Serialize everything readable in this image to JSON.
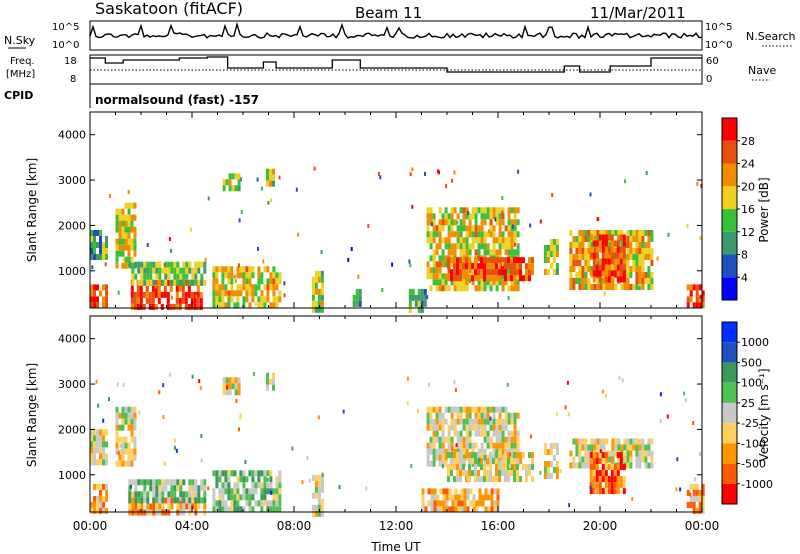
{
  "header": {
    "station": "Saskatoon (fitACF)",
    "beam": "Beam 11",
    "date": "11/Mar/2011"
  },
  "top_panels": {
    "nsky_label": "N.Sky",
    "nsky_ticks": [
      "10^5",
      "10^0"
    ],
    "nsearch_label": "N.Search",
    "nsearch_ticks": [
      "10^5",
      "10^0"
    ],
    "freq_label_1": "Freq.",
    "freq_label_2": "[MHz]",
    "freq_ticks": [
      "18",
      "8"
    ],
    "nave_label": "Nave",
    "nave_ticks": [
      "60",
      "0"
    ],
    "cpid_label": "CPID",
    "cpid_value": "normalsound (fast) -157"
  },
  "colors": {
    "power": [
      "#0000ff",
      "#2050c0",
      "#3c9a6e",
      "#38c038",
      "#f0d020",
      "#f08c00",
      "#e85010",
      "#ff0000"
    ],
    "velocity": [
      "#ff0000",
      "#ff5a00",
      "#ff9600",
      "#ffd060",
      "#c8c8c8",
      "#50c050",
      "#3a9a5a",
      "#2050c0",
      "#0030ff"
    ],
    "ground": "#c8c8c8"
  },
  "chart_data": [
    {
      "type": "heatmap",
      "name": "power-panel",
      "ylabel": "Slant Range [km]",
      "yticks": [
        "1000",
        "2000",
        "3000",
        "4000"
      ],
      "ylim": [
        180,
        4500
      ],
      "xlim": [
        0,
        24
      ],
      "colorbar_label": "Power [dB]",
      "colorbar_ticks": [
        "4",
        "8",
        "12",
        "16",
        "20",
        "24",
        "28"
      ],
      "scale_range": [
        0,
        32
      ],
      "regions": [
        {
          "t0": 0.0,
          "t1": 0.7,
          "r0": 200,
          "r1": 700,
          "level": 0.85
        },
        {
          "t0": 0.0,
          "t1": 0.7,
          "r0": 1300,
          "r1": 1900,
          "level": 0.35
        },
        {
          "t0": 1.0,
          "t1": 1.8,
          "r0": 1100,
          "r1": 2500,
          "level": 0.55
        },
        {
          "t0": 1.6,
          "t1": 4.4,
          "r0": 200,
          "r1": 800,
          "level": 0.92
        },
        {
          "t0": 1.5,
          "t1": 4.5,
          "r0": 700,
          "r1": 1200,
          "level": 0.45
        },
        {
          "t0": 4.8,
          "t1": 7.4,
          "r0": 200,
          "r1": 1100,
          "level": 0.6
        },
        {
          "t0": 5.2,
          "t1": 5.8,
          "r0": 2850,
          "r1": 3150,
          "level": 0.55
        },
        {
          "t0": 6.9,
          "t1": 7.2,
          "r0": 2900,
          "r1": 3250,
          "level": 0.55
        },
        {
          "t0": 8.7,
          "t1": 9.1,
          "r0": 200,
          "r1": 1000,
          "level": 0.5
        },
        {
          "t0": 10.3,
          "t1": 10.6,
          "r0": 250,
          "r1": 600,
          "level": 0.3
        },
        {
          "t0": 12.5,
          "t1": 13.2,
          "r0": 200,
          "r1": 600,
          "level": 0.35
        },
        {
          "t0": 13.2,
          "t1": 16.8,
          "r0": 650,
          "r1": 2400,
          "level": 0.6
        },
        {
          "t0": 14.0,
          "t1": 17.3,
          "r0": 800,
          "r1": 1300,
          "level": 0.85
        },
        {
          "t0": 17.8,
          "t1": 18.3,
          "r0": 1000,
          "r1": 1700,
          "level": 0.5
        },
        {
          "t0": 18.8,
          "t1": 22.0,
          "r0": 700,
          "r1": 1900,
          "level": 0.65
        },
        {
          "t0": 19.6,
          "t1": 21.0,
          "r0": 750,
          "r1": 1800,
          "level": 0.9
        },
        {
          "t0": 23.4,
          "t1": 24.0,
          "r0": 200,
          "r1": 700,
          "level": 0.9
        }
      ]
    },
    {
      "type": "heatmap",
      "name": "velocity-panel",
      "ylabel": "Slant Range [km]",
      "yticks": [
        "1000",
        "2000",
        "3000",
        "4000"
      ],
      "ylim": [
        180,
        4500
      ],
      "xlim": [
        0,
        24
      ],
      "xlabel": "Time UT",
      "xticks": [
        "00:00",
        "04:00",
        "08:00",
        "12:00",
        "16:00",
        "20:00",
        "00:00"
      ],
      "colorbar_label": "Velocity [m s⁻¹]",
      "colorbar_ticks": [
        "-1000",
        "-500",
        "-100",
        "-25",
        "25",
        "100",
        "500",
        "1000"
      ],
      "regions": [
        {
          "t0": 0.0,
          "t1": 0.7,
          "r0": 200,
          "r1": 800,
          "level": 0.3
        },
        {
          "t0": 0.0,
          "t1": 0.7,
          "r0": 1300,
          "r1": 2000,
          "level": 0.45
        },
        {
          "t0": 1.0,
          "t1": 1.8,
          "r0": 1200,
          "r1": 2500,
          "level": 0.45
        },
        {
          "t0": 1.5,
          "t1": 4.5,
          "r0": 200,
          "r1": 500,
          "level": 0.3
        },
        {
          "t0": 1.5,
          "t1": 4.5,
          "r0": 500,
          "r1": 900,
          "level": 0.62
        },
        {
          "t0": 4.8,
          "t1": 7.4,
          "r0": 200,
          "r1": 1100,
          "level": 0.6
        },
        {
          "t0": 5.2,
          "t1": 5.8,
          "r0": 2850,
          "r1": 3150,
          "level": 0.45
        },
        {
          "t0": 6.9,
          "t1": 7.2,
          "r0": 2900,
          "r1": 3250,
          "level": 0.45
        },
        {
          "t0": 8.7,
          "t1": 9.1,
          "r0": 200,
          "r1": 1000,
          "level": 0.45
        },
        {
          "t0": 13.2,
          "t1": 16.8,
          "r0": 1200,
          "r1": 2500,
          "level": 0.45
        },
        {
          "t0": 14.0,
          "t1": 17.3,
          "r0": 900,
          "r1": 1500,
          "level": 0.45
        },
        {
          "t0": 13.0,
          "t1": 16.0,
          "r0": 200,
          "r1": 700,
          "level": 0.3
        },
        {
          "t0": 17.8,
          "t1": 18.3,
          "r0": 1000,
          "r1": 1700,
          "level": 0.45
        },
        {
          "t0": 18.8,
          "t1": 22.0,
          "r0": 1200,
          "r1": 1800,
          "level": 0.45
        },
        {
          "t0": 19.6,
          "t1": 21.0,
          "r0": 700,
          "r1": 1500,
          "level": 0.15
        },
        {
          "t0": 23.4,
          "t1": 24.0,
          "r0": 200,
          "r1": 800,
          "level": 0.3
        }
      ]
    }
  ]
}
